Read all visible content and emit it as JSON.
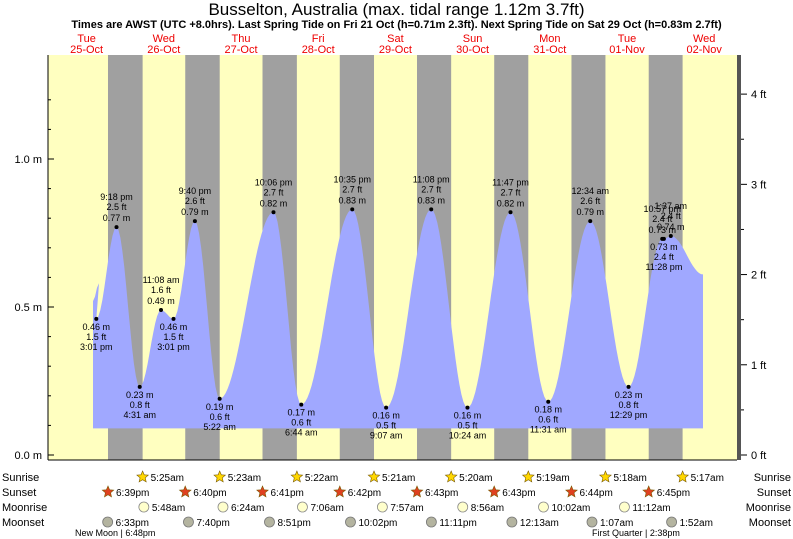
{
  "header": {
    "title": "Busselton, Australia (max. tidal range 1.12m 3.7ft)",
    "subtitle": "Times are AWST (UTC +8.0hrs). Last Spring Tide on Fri 21 Oct (h=0.71m 2.3ft). Next Spring Tide on Sat 29 Oct (h=0.83m 2.7ft)"
  },
  "colors": {
    "day": "#ffffc0",
    "night": "#a0a0a0",
    "tide_fill": "#a0a8ff",
    "day_header": "#ee0000",
    "sun_star": "#ffd700",
    "sunset_star": "#e04020",
    "moonrise": "#ffffcc",
    "moonset": "#b4b4a0"
  },
  "days": [
    {
      "dow": "Tue",
      "date": "25-Oct"
    },
    {
      "dow": "Wed",
      "date": "26-Oct"
    },
    {
      "dow": "Thu",
      "date": "27-Oct"
    },
    {
      "dow": "Fri",
      "date": "28-Oct"
    },
    {
      "dow": "Sat",
      "date": "29-Oct"
    },
    {
      "dow": "Sun",
      "date": "30-Oct"
    },
    {
      "dow": "Mon",
      "date": "31-Oct"
    },
    {
      "dow": "Tue",
      "date": "01-Nov"
    },
    {
      "dow": "Wed",
      "date": "02-Nov"
    }
  ],
  "chart_data": {
    "type": "area",
    "xlabel": "",
    "ylabel_left_unit": "m",
    "ylabel_right_unit": "ft",
    "ylim_m": [
      0,
      1.3
    ],
    "yticks_left": [
      "0.0 m",
      "0.5 m",
      "1.0 m"
    ],
    "yticks_right": [
      "0 ft",
      "1 ft",
      "2 ft",
      "3 ft",
      "4 ft"
    ],
    "x_range": [
      "2022-10-25 00:00",
      "2022-11-02 12:00"
    ],
    "tides": [
      {
        "time": "2022-10-25 15:01",
        "label": "3:01 pm",
        "m": 0.46,
        "m_label": "0.46 m",
        "ft_label": "1.5 ft",
        "type": "low"
      },
      {
        "time": "2022-10-25 21:18",
        "label": "9:18 pm",
        "m": 0.77,
        "m_label": "0.77 m",
        "ft_label": "2.5 ft",
        "type": "high"
      },
      {
        "time": "2022-10-26 04:31",
        "label": "4:31 am",
        "m": 0.23,
        "m_label": "0.23 m",
        "ft_label": "0.8 ft",
        "type": "low"
      },
      {
        "time": "2022-10-26 11:08",
        "label": "11:08 am",
        "m": 0.49,
        "m_label": "0.49 m",
        "ft_label": "1.6 ft",
        "type": "high"
      },
      {
        "time": "2022-10-26 15:01",
        "label": "3:01 pm",
        "m": 0.46,
        "m_label": "0.46 m",
        "ft_label": "1.5 ft",
        "type": "low"
      },
      {
        "time": "2022-10-26 21:40",
        "label": "9:40 pm",
        "m": 0.79,
        "m_label": "0.79 m",
        "ft_label": "2.6 ft",
        "type": "high"
      },
      {
        "time": "2022-10-27 05:22",
        "label": "5:22 am",
        "m": 0.19,
        "m_label": "0.19 m",
        "ft_label": "0.6 ft",
        "type": "low"
      },
      {
        "time": "2022-10-27 22:06",
        "label": "10:06 pm",
        "m": 0.82,
        "m_label": "0.82 m",
        "ft_label": "2.7 ft",
        "type": "high"
      },
      {
        "time": "2022-10-28 06:44",
        "label": "6:44 am",
        "m": 0.17,
        "m_label": "0.17 m",
        "ft_label": "0.6 ft",
        "type": "low"
      },
      {
        "time": "2022-10-28 22:35",
        "label": "10:35 pm",
        "m": 0.83,
        "m_label": "0.83 m",
        "ft_label": "2.7 ft",
        "type": "high"
      },
      {
        "time": "2022-10-29 09:07",
        "label": "9:07 am",
        "m": 0.16,
        "m_label": "0.16 m",
        "ft_label": "0.5 ft",
        "type": "low"
      },
      {
        "time": "2022-10-29 23:08",
        "label": "11:08 pm",
        "m": 0.83,
        "m_label": "0.83 m",
        "ft_label": "2.7 ft",
        "type": "high"
      },
      {
        "time": "2022-10-30 10:24",
        "label": "10:24 am",
        "m": 0.16,
        "m_label": "0.16 m",
        "ft_label": "0.5 ft",
        "type": "low"
      },
      {
        "time": "2022-10-30 23:47",
        "label": "11:47 pm",
        "m": 0.82,
        "m_label": "0.82 m",
        "ft_label": "2.7 ft",
        "type": "high"
      },
      {
        "time": "2022-10-31 11:31",
        "label": "11:31 am",
        "m": 0.18,
        "m_label": "0.18 m",
        "ft_label": "0.6 ft",
        "type": "low"
      },
      {
        "time": "2022-11-01 00:34",
        "label": "12:34 am",
        "m": 0.79,
        "m_label": "0.79 m",
        "ft_label": "2.6 ft",
        "type": "high"
      },
      {
        "time": "2022-11-01 12:29",
        "label": "12:29 pm",
        "m": 0.23,
        "m_label": "0.23 m",
        "ft_label": "0.8 ft",
        "type": "low"
      },
      {
        "time": "2022-11-01 22:57",
        "label": "10:57 pm",
        "m": 0.73,
        "m_label": "0.73 m",
        "ft_label": "2.4 ft",
        "type": "high"
      },
      {
        "time": "2022-11-01 23:28",
        "label": "11:28 pm",
        "m": 0.73,
        "m_label": "0.73 m",
        "ft_label": "2.4 ft",
        "type": "low"
      },
      {
        "time": "2022-11-02 01:37",
        "label": "1:37 am",
        "m": 0.74,
        "m_label": "0.74 m",
        "ft_label": "2.4 ft",
        "type": "high"
      }
    ]
  },
  "astro": {
    "row_labels": [
      "Sunrise",
      "Sunset",
      "Moonrise",
      "Moonset"
    ],
    "sunrise": [
      "5:25am",
      "5:23am",
      "5:22am",
      "5:21am",
      "5:20am",
      "5:19am",
      "5:18am",
      "5:17am"
    ],
    "sunset": [
      "6:39pm",
      "6:40pm",
      "6:41pm",
      "6:42pm",
      "6:43pm",
      "6:43pm",
      "6:44pm",
      "6:45pm"
    ],
    "moonrise": [
      "5:48am",
      "6:24am",
      "7:06am",
      "7:57am",
      "8:56am",
      "10:02am",
      "11:12am"
    ],
    "moonset": [
      "6:33pm",
      "7:40pm",
      "8:51pm",
      "10:02pm",
      "11:11pm",
      "12:13am",
      "1:07am",
      "1:52am"
    ],
    "moon_phases": [
      {
        "label": "New Moon",
        "time": "6:48pm"
      },
      {
        "label": "First Quarter",
        "time": "2:38pm"
      }
    ]
  }
}
